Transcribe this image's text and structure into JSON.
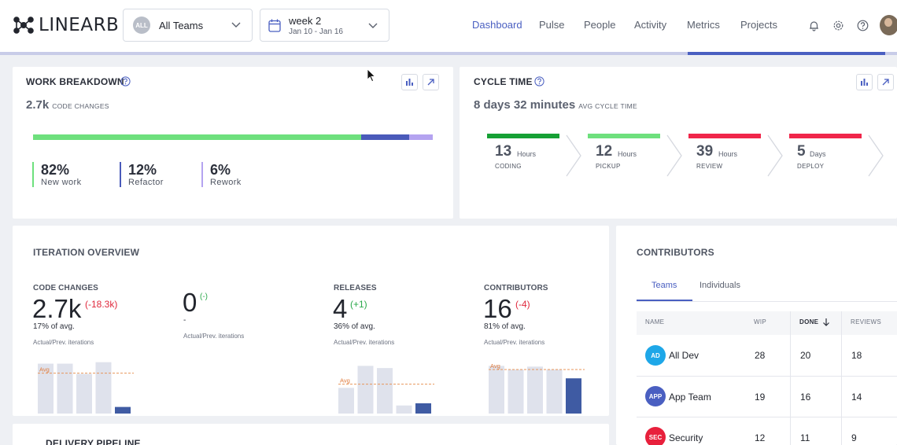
{
  "header": {
    "logo_text": "LINEARB",
    "team_select": {
      "badge": "ALL",
      "label": "All Teams"
    },
    "week_select": {
      "title": "week 2",
      "range": "Jan 10 - Jan 16"
    },
    "nav": [
      "Dashboard",
      "Pulse",
      "People",
      "Activity",
      "Metrics",
      "Projects"
    ],
    "active_nav": "Dashboard",
    "icons": [
      "bell-icon",
      "gear-icon",
      "help-icon",
      "user-avatar"
    ],
    "loading_progress": 0.22
  },
  "work_breakdown": {
    "title": "WORK BREAKDOWN",
    "total": "2.7k",
    "total_label": "CODE CHANGES",
    "segments": [
      {
        "label": "New work",
        "pct": "82%",
        "value": 82,
        "color": "#6ee07d"
      },
      {
        "label": "Refactor",
        "pct": "12%",
        "value": 12,
        "color": "#4a5aba"
      },
      {
        "label": "Rework",
        "pct": "6%",
        "value": 6,
        "color": "#b4a3f0"
      }
    ]
  },
  "cycle_time": {
    "title": "CYCLE TIME",
    "total": "8 days 32 minutes",
    "total_label": "AVG CYCLE TIME",
    "stages": [
      {
        "value": "13",
        "unit": "Hours",
        "label": "CODING",
        "color": "#16a035"
      },
      {
        "value": "12",
        "unit": "Hours",
        "label": "PICKUP",
        "color": "#6ee07d"
      },
      {
        "value": "39",
        "unit": "Hours",
        "label": "REVIEW",
        "color": "#f0264a"
      },
      {
        "value": "5",
        "unit": "Days",
        "label": "DEPLOY",
        "color": "#f0264a"
      }
    ]
  },
  "iteration_overview": {
    "title": "ITERATION OVERVIEW",
    "kpis": [
      {
        "label": "CODE CHANGES",
        "value": "2.7k",
        "delta": "(-18.3k)",
        "delta_color": "#e0283c",
        "avg": "17% of avg.",
        "caption": "Actual/Prev. iterations",
        "bars": [
          68,
          68,
          54,
          70,
          9
        ],
        "avg_line": 55
      },
      {
        "label": "",
        "value": "0",
        "delta": "(-)",
        "delta_color": "#2aa84a",
        "avg": "-",
        "caption": "Actual/Prev. iterations",
        "bars": [],
        "avg_line": null
      },
      {
        "label": "RELEASES",
        "value": "4",
        "delta": "(+1)",
        "delta_color": "#2aa84a",
        "avg": "36% of avg.",
        "caption": "Actual/Prev. iterations",
        "bars": [
          35,
          65,
          62,
          11,
          14
        ],
        "avg_line": 40
      },
      {
        "label": "CONTRIBUTORS",
        "value": "16",
        "delta": "(-4)",
        "delta_color": "#e0283c",
        "avg": "81% of avg.",
        "caption": "Actual/Prev. iterations",
        "bars": [
          65,
          60,
          64,
          60,
          48
        ],
        "avg_line": 60
      }
    ],
    "avg_tag": "Avg"
  },
  "contributors": {
    "title": "CONTRIBUTORS",
    "tabs": [
      "Teams",
      "Individuals"
    ],
    "active_tab": "Teams",
    "columns": [
      "NAME",
      "WIP",
      "DONE",
      "REVIEWS"
    ],
    "sorted_column": "DONE",
    "rows": [
      {
        "badge": "AD",
        "badge_color": "#1ea7e8",
        "name": "All Dev",
        "wip": "28",
        "done": "20",
        "reviews": "18"
      },
      {
        "badge": "APP",
        "badge_color": "#4a5fc1",
        "name": "App Team",
        "wip": "19",
        "done": "16",
        "reviews": "14"
      },
      {
        "badge": "SEC",
        "badge_color": "#e8203c",
        "name": "Security",
        "wip": "12",
        "done": "11",
        "reviews": "9"
      }
    ]
  },
  "delivery_pipeline": {
    "title": "DELIVERY PIPELINE"
  }
}
